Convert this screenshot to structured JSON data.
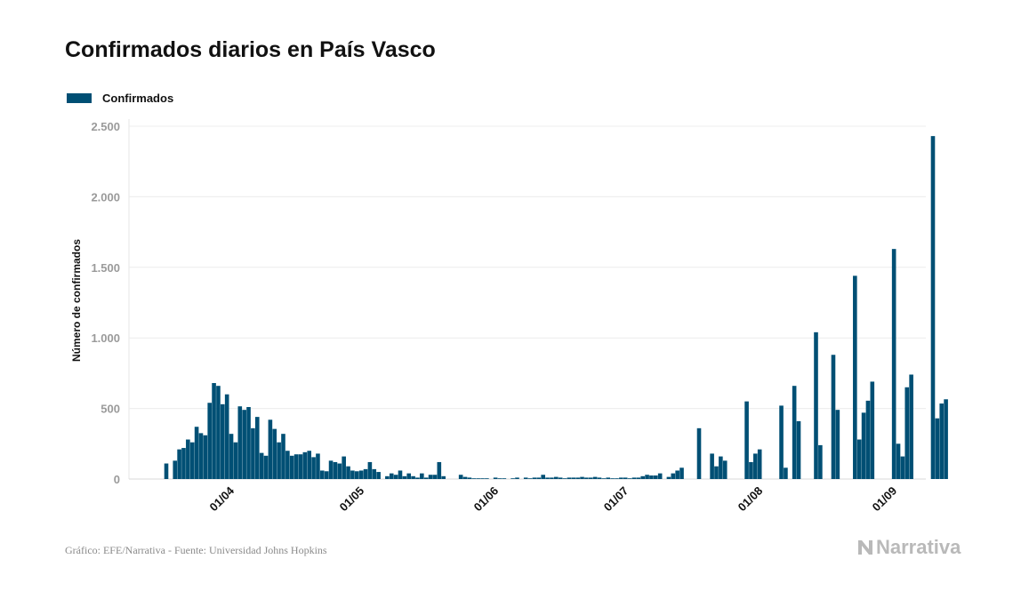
{
  "chart_data": {
    "type": "bar",
    "title": "Confirmados diarios en País Vasco",
    "ylabel": "Número de confirmados",
    "xlabel": "",
    "ylim": [
      0,
      2500
    ],
    "yticks": [
      {
        "value": 0,
        "label": "0"
      },
      {
        "value": 500,
        "label": "500"
      },
      {
        "value": 1000,
        "label": "1.000"
      },
      {
        "value": 1500,
        "label": "1.500"
      },
      {
        "value": 2000,
        "label": "2.000"
      },
      {
        "value": 2500,
        "label": "2.500"
      }
    ],
    "xticks": [
      {
        "day": 15,
        "label": "01/04"
      },
      {
        "day": 45,
        "label": "01/05"
      },
      {
        "day": 76,
        "label": "01/06"
      },
      {
        "day": 106,
        "label": "01/07"
      },
      {
        "day": 137,
        "label": "01/08"
      },
      {
        "day": 168,
        "label": "01/09"
      }
    ],
    "grid": true,
    "legend_position": "top-left",
    "color": "#004f74",
    "series": [
      {
        "name": "Confirmados",
        "values": [
          110,
          0,
          130,
          210,
          220,
          280,
          260,
          370,
          325,
          310,
          540,
          680,
          660,
          530,
          600,
          320,
          260,
          515,
          490,
          510,
          360,
          440,
          185,
          165,
          420,
          355,
          260,
          320,
          200,
          165,
          175,
          175,
          190,
          200,
          155,
          180,
          60,
          55,
          130,
          120,
          110,
          160,
          90,
          60,
          55,
          60,
          70,
          120,
          70,
          50,
          0,
          20,
          40,
          30,
          60,
          20,
          40,
          20,
          10,
          40,
          10,
          30,
          30,
          120,
          20,
          0,
          0,
          0,
          30,
          15,
          10,
          5,
          5,
          5,
          5,
          0,
          10,
          5,
          5,
          0,
          5,
          10,
          0,
          10,
          5,
          10,
          10,
          30,
          10,
          10,
          15,
          10,
          5,
          10,
          10,
          10,
          15,
          10,
          10,
          15,
          10,
          5,
          10,
          5,
          5,
          10,
          10,
          5,
          10,
          10,
          20,
          30,
          25,
          25,
          40,
          0,
          15,
          40,
          60,
          80,
          0,
          0,
          0,
          360,
          0,
          0,
          180,
          90,
          160,
          130,
          0,
          0,
          0,
          0,
          550,
          120,
          180,
          210,
          0,
          0,
          0,
          0,
          520,
          80,
          0,
          660,
          410,
          0,
          0,
          0,
          1040,
          240,
          0,
          0,
          880,
          490,
          0,
          0,
          0,
          1440,
          280,
          470,
          555,
          690,
          0,
          0,
          0,
          0,
          1630,
          250,
          160,
          650,
          740,
          0,
          0,
          0,
          0,
          2430,
          430,
          535,
          565
        ]
      }
    ],
    "source": "Gráfico: EFE/Narrativa - Fuente: Universidad Johns Hopkins",
    "brand": "Narrativa"
  }
}
